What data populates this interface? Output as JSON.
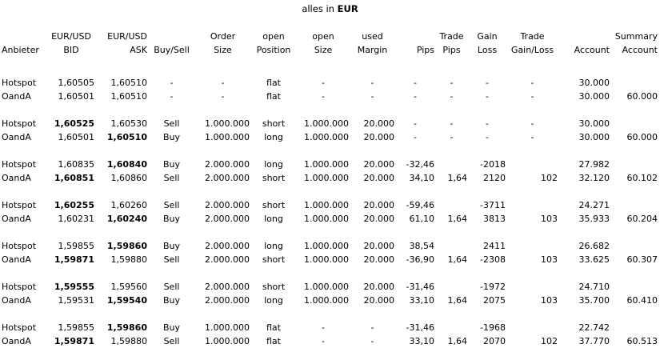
{
  "title": {
    "prefix": "alles in ",
    "currency": "EUR"
  },
  "headers": [
    [
      "",
      "Anbieter"
    ],
    [
      "EUR/USD",
      "BID"
    ],
    [
      "EUR/USD",
      "ASK"
    ],
    [
      "",
      "Buy/Sell"
    ],
    [
      "Order",
      "Size"
    ],
    [
      "open",
      "Position"
    ],
    [
      "open",
      "Size"
    ],
    [
      "used",
      "Margin"
    ],
    [
      "",
      "Pips"
    ],
    [
      "Trade",
      "Pips"
    ],
    [
      "Gain",
      "Loss"
    ],
    [
      "Trade",
      "Gain/Loss"
    ],
    [
      "",
      "Account"
    ],
    [
      "Summary",
      "Account"
    ]
  ],
  "groups": [
    {
      "rows": [
        {
          "cells": [
            "Hotspot",
            "1,60505",
            "1,60510",
            "-",
            "-",
            "flat",
            "-",
            "-",
            "-",
            "-",
            "-",
            "-",
            "30.000",
            ""
          ],
          "bold": []
        },
        {
          "cells": [
            "OandA",
            "1,60501",
            "1,60510",
            "-",
            "-",
            "flat",
            "-",
            "-",
            "-",
            "-",
            "-",
            "-",
            "30.000",
            "60.000"
          ],
          "bold": []
        }
      ]
    },
    {
      "rows": [
        {
          "cells": [
            "Hotspot",
            "1,60525",
            "1,60530",
            "Sell",
            "1.000.000",
            "short",
            "1.000.000",
            "20.000",
            "-",
            "-",
            "-",
            "-",
            "30.000",
            ""
          ],
          "bold": [
            1
          ]
        },
        {
          "cells": [
            "OandA",
            "1,60501",
            "1,60510",
            "Buy",
            "1.000.000",
            "long",
            "1.000.000",
            "20.000",
            "-",
            "-",
            "-",
            "-",
            "30.000",
            "60.000"
          ],
          "bold": [
            2
          ]
        }
      ]
    },
    {
      "rows": [
        {
          "cells": [
            "Hotspot",
            "1,60835",
            "1,60840",
            "Buy",
            "2.000.000",
            "long",
            "1.000.000",
            "20.000",
            "-32,46",
            "",
            "-2018",
            "",
            "27.982",
            ""
          ],
          "bold": [
            2
          ]
        },
        {
          "cells": [
            "OandA",
            "1,60851",
            "1,60860",
            "Sell",
            "2.000.000",
            "short",
            "1.000.000",
            "20.000",
            "34,10",
            "1,64",
            "2120",
            "102",
            "32.120",
            "60.102"
          ],
          "bold": [
            1
          ]
        }
      ]
    },
    {
      "rows": [
        {
          "cells": [
            "Hotspot",
            "1,60255",
            "1,60260",
            "Sell",
            "2.000.000",
            "short",
            "1.000.000",
            "20.000",
            "-59,46",
            "",
            "-3711",
            "",
            "24.271",
            ""
          ],
          "bold": [
            1
          ]
        },
        {
          "cells": [
            "OandA",
            "1,60231",
            "1,60240",
            "Buy",
            "2.000.000",
            "long",
            "1.000.000",
            "20.000",
            "61,10",
            "1,64",
            "3813",
            "103",
            "35.933",
            "60.204"
          ],
          "bold": [
            2
          ]
        }
      ]
    },
    {
      "rows": [
        {
          "cells": [
            "Hotspot",
            "1,59855",
            "1,59860",
            "Buy",
            "2.000.000",
            "long",
            "1.000.000",
            "20.000",
            "38,54",
            "",
            "2411",
            "",
            "26.682",
            ""
          ],
          "bold": [
            2
          ]
        },
        {
          "cells": [
            "OandA",
            "1,59871",
            "1,59880",
            "Sell",
            "2.000.000",
            "short",
            "1.000.000",
            "20.000",
            "-36,90",
            "1,64",
            "-2308",
            "103",
            "33.625",
            "60.307"
          ],
          "bold": [
            1
          ]
        }
      ]
    },
    {
      "rows": [
        {
          "cells": [
            "Hotspot",
            "1,59555",
            "1,59560",
            "Sell",
            "2.000.000",
            "short",
            "1.000.000",
            "20.000",
            "-31,46",
            "",
            "-1972",
            "",
            "24.710",
            ""
          ],
          "bold": [
            1
          ]
        },
        {
          "cells": [
            "OandA",
            "1,59531",
            "1,59540",
            "Buy",
            "2.000.000",
            "long",
            "1.000.000",
            "20.000",
            "33,10",
            "1,64",
            "2075",
            "103",
            "35.700",
            "60.410"
          ],
          "bold": [
            2
          ]
        }
      ]
    },
    {
      "rows": [
        {
          "cells": [
            "Hotspot",
            "1,59855",
            "1,59860",
            "Buy",
            "1.000.000",
            "flat",
            "-",
            "-",
            "-31,46",
            "",
            "-1968",
            "",
            "22.742",
            ""
          ],
          "bold": [
            2
          ]
        },
        {
          "cells": [
            "OandA",
            "1,59871",
            "1,59880",
            "Sell",
            "1.000.000",
            "flat",
            "-",
            "-",
            "33,10",
            "1,64",
            "2070",
            "102",
            "37.770",
            "60.513"
          ],
          "bold": [
            1
          ]
        }
      ]
    }
  ]
}
